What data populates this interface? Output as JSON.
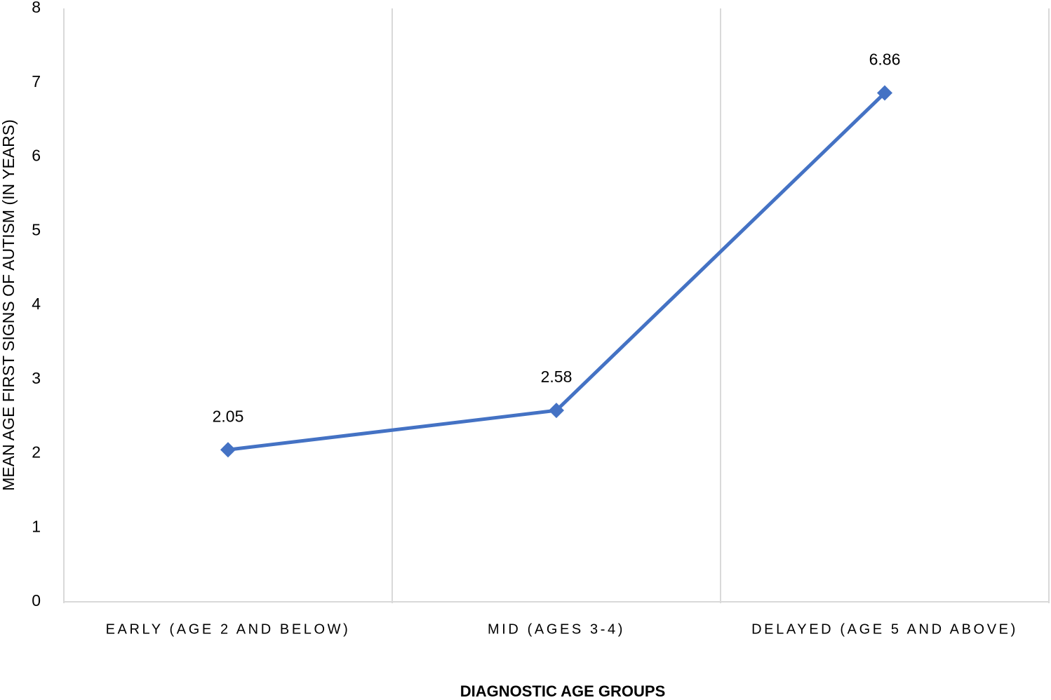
{
  "chart_data": {
    "type": "line",
    "x_label": "DIAGNOSTIC AGE GROUPS",
    "y_label": "MEAN AGE FIRST SIGNS OF AUTISM (IN YEARS)",
    "categories": [
      "EARLY (AGE 2 AND BELOW)",
      "MID (AGES 3-4)",
      "DELAYED (AGE 5 AND ABOVE)"
    ],
    "values": [
      2.05,
      2.58,
      6.86
    ],
    "color": "#4472c4",
    "marker": "diamond",
    "ylim": [
      0,
      8
    ],
    "yticks": [
      0,
      1,
      2,
      3,
      4,
      5,
      6,
      7,
      8
    ],
    "grid": "x"
  }
}
